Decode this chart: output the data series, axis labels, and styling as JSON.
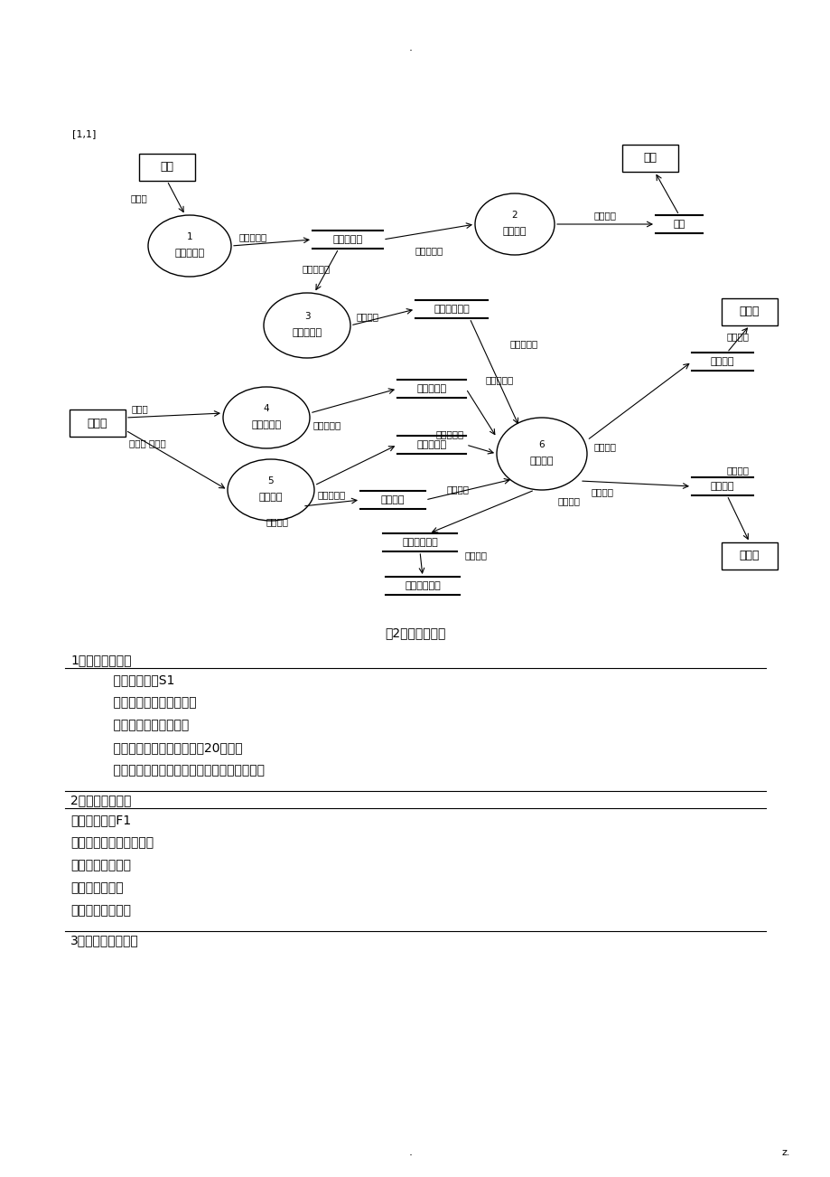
{
  "title": "图2系统数据流图",
  "page_label_top": "[1,1]",
  "page_dot_top": ".",
  "page_dot_bottom": ".",
  "page_z_bottom": "z.",
  "background": "#ffffff",
  "text_color": "#000000",
  "section1_title": "1．数据项的定义",
  "section1_items": [
    "    数据项编号：S1",
    "    数据项名称：供应商编号",
    "    简述：供应商表的主键",
    "    类型及宽度：不定长字符型20个字节",
    "    相关数据：商品表、进货表、订货表、退货表"
  ],
  "section2_title": "2．数据流的定义",
  "section2_items": [
    "数据流编号：F1",
    "数据流名称：发货单数据",
    "来源：发货单文件",
    "流向：管理分析",
    "处理：查询、维护"
  ],
  "section3_title": "3．数据存储的定义"
}
